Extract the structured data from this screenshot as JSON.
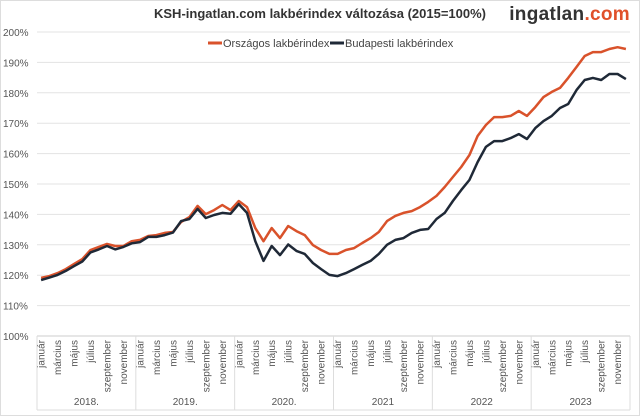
{
  "logo": {
    "text_main": "ingatlan",
    "text_accent": ".com",
    "accent_color": "#e0502a"
  },
  "chart_data": {
    "type": "line",
    "title": "KSH-ingatlan.com lakbérindex változása (2015=100%)",
    "xlabel": "",
    "ylabel": "",
    "ylim": [
      100,
      200
    ],
    "yticks": [
      "100%",
      "110%",
      "120%",
      "130%",
      "140%",
      "150%",
      "160%",
      "170%",
      "180%",
      "190%",
      "200%"
    ],
    "grid": true,
    "legend_position": "top",
    "years": [
      "2018.",
      "2019.",
      "2020.",
      "2021",
      "2022",
      "2023"
    ],
    "month_tick_labels": [
      "január",
      "március",
      "május",
      "július",
      "szeptember",
      "november"
    ],
    "series": [
      {
        "name": "Országos lakbérindex",
        "color": "#d9522b",
        "values": [
          119.1,
          119.7,
          120.7,
          122.0,
          123.7,
          125.3,
          128.3,
          129.3,
          130.3,
          129.6,
          129.6,
          131.2,
          131.6,
          132.9,
          133.2,
          133.9,
          134.2,
          137.5,
          139.1,
          142.8,
          140.1,
          141.4,
          143.1,
          141.4,
          144.4,
          142.4,
          135.5,
          131.2,
          135.5,
          132.2,
          136.2,
          134.5,
          133.2,
          129.9,
          128.3,
          127.0,
          127.0,
          128.3,
          128.9,
          130.6,
          132.2,
          134.2,
          137.8,
          139.5,
          140.5,
          141.1,
          142.4,
          144.1,
          146.1,
          149.0,
          152.3,
          155.6,
          159.5,
          165.8,
          169.4,
          172.0,
          172.0,
          172.4,
          174.0,
          172.4,
          175.3,
          178.6,
          180.3,
          181.6,
          184.9,
          188.5,
          192.1,
          193.4,
          193.4,
          194.4,
          195.0,
          194.4
        ]
      },
      {
        "name": "Budapesti lakbérindex",
        "color": "#1f2937",
        "values": [
          118.4,
          119.2,
          120.1,
          121.4,
          123.0,
          124.5,
          127.5,
          128.5,
          129.6,
          128.5,
          129.3,
          130.5,
          130.9,
          132.6,
          132.6,
          133.2,
          134.0,
          137.8,
          138.5,
          141.8,
          138.8,
          139.8,
          140.5,
          140.2,
          143.4,
          140.5,
          131.2,
          124.7,
          129.6,
          126.6,
          130.1,
          128.0,
          127.0,
          124.0,
          122.0,
          120.1,
          119.7,
          120.7,
          122.0,
          123.4,
          124.7,
          127.0,
          130.0,
          131.6,
          132.2,
          133.9,
          134.9,
          135.2,
          138.5,
          140.5,
          144.4,
          148.0,
          151.3,
          157.2,
          162.2,
          164.1,
          164.1,
          165.1,
          166.4,
          164.8,
          168.4,
          170.7,
          172.4,
          175.0,
          176.3,
          180.9,
          184.2,
          184.9,
          184.2,
          186.2,
          186.2,
          184.5
        ]
      }
    ]
  }
}
